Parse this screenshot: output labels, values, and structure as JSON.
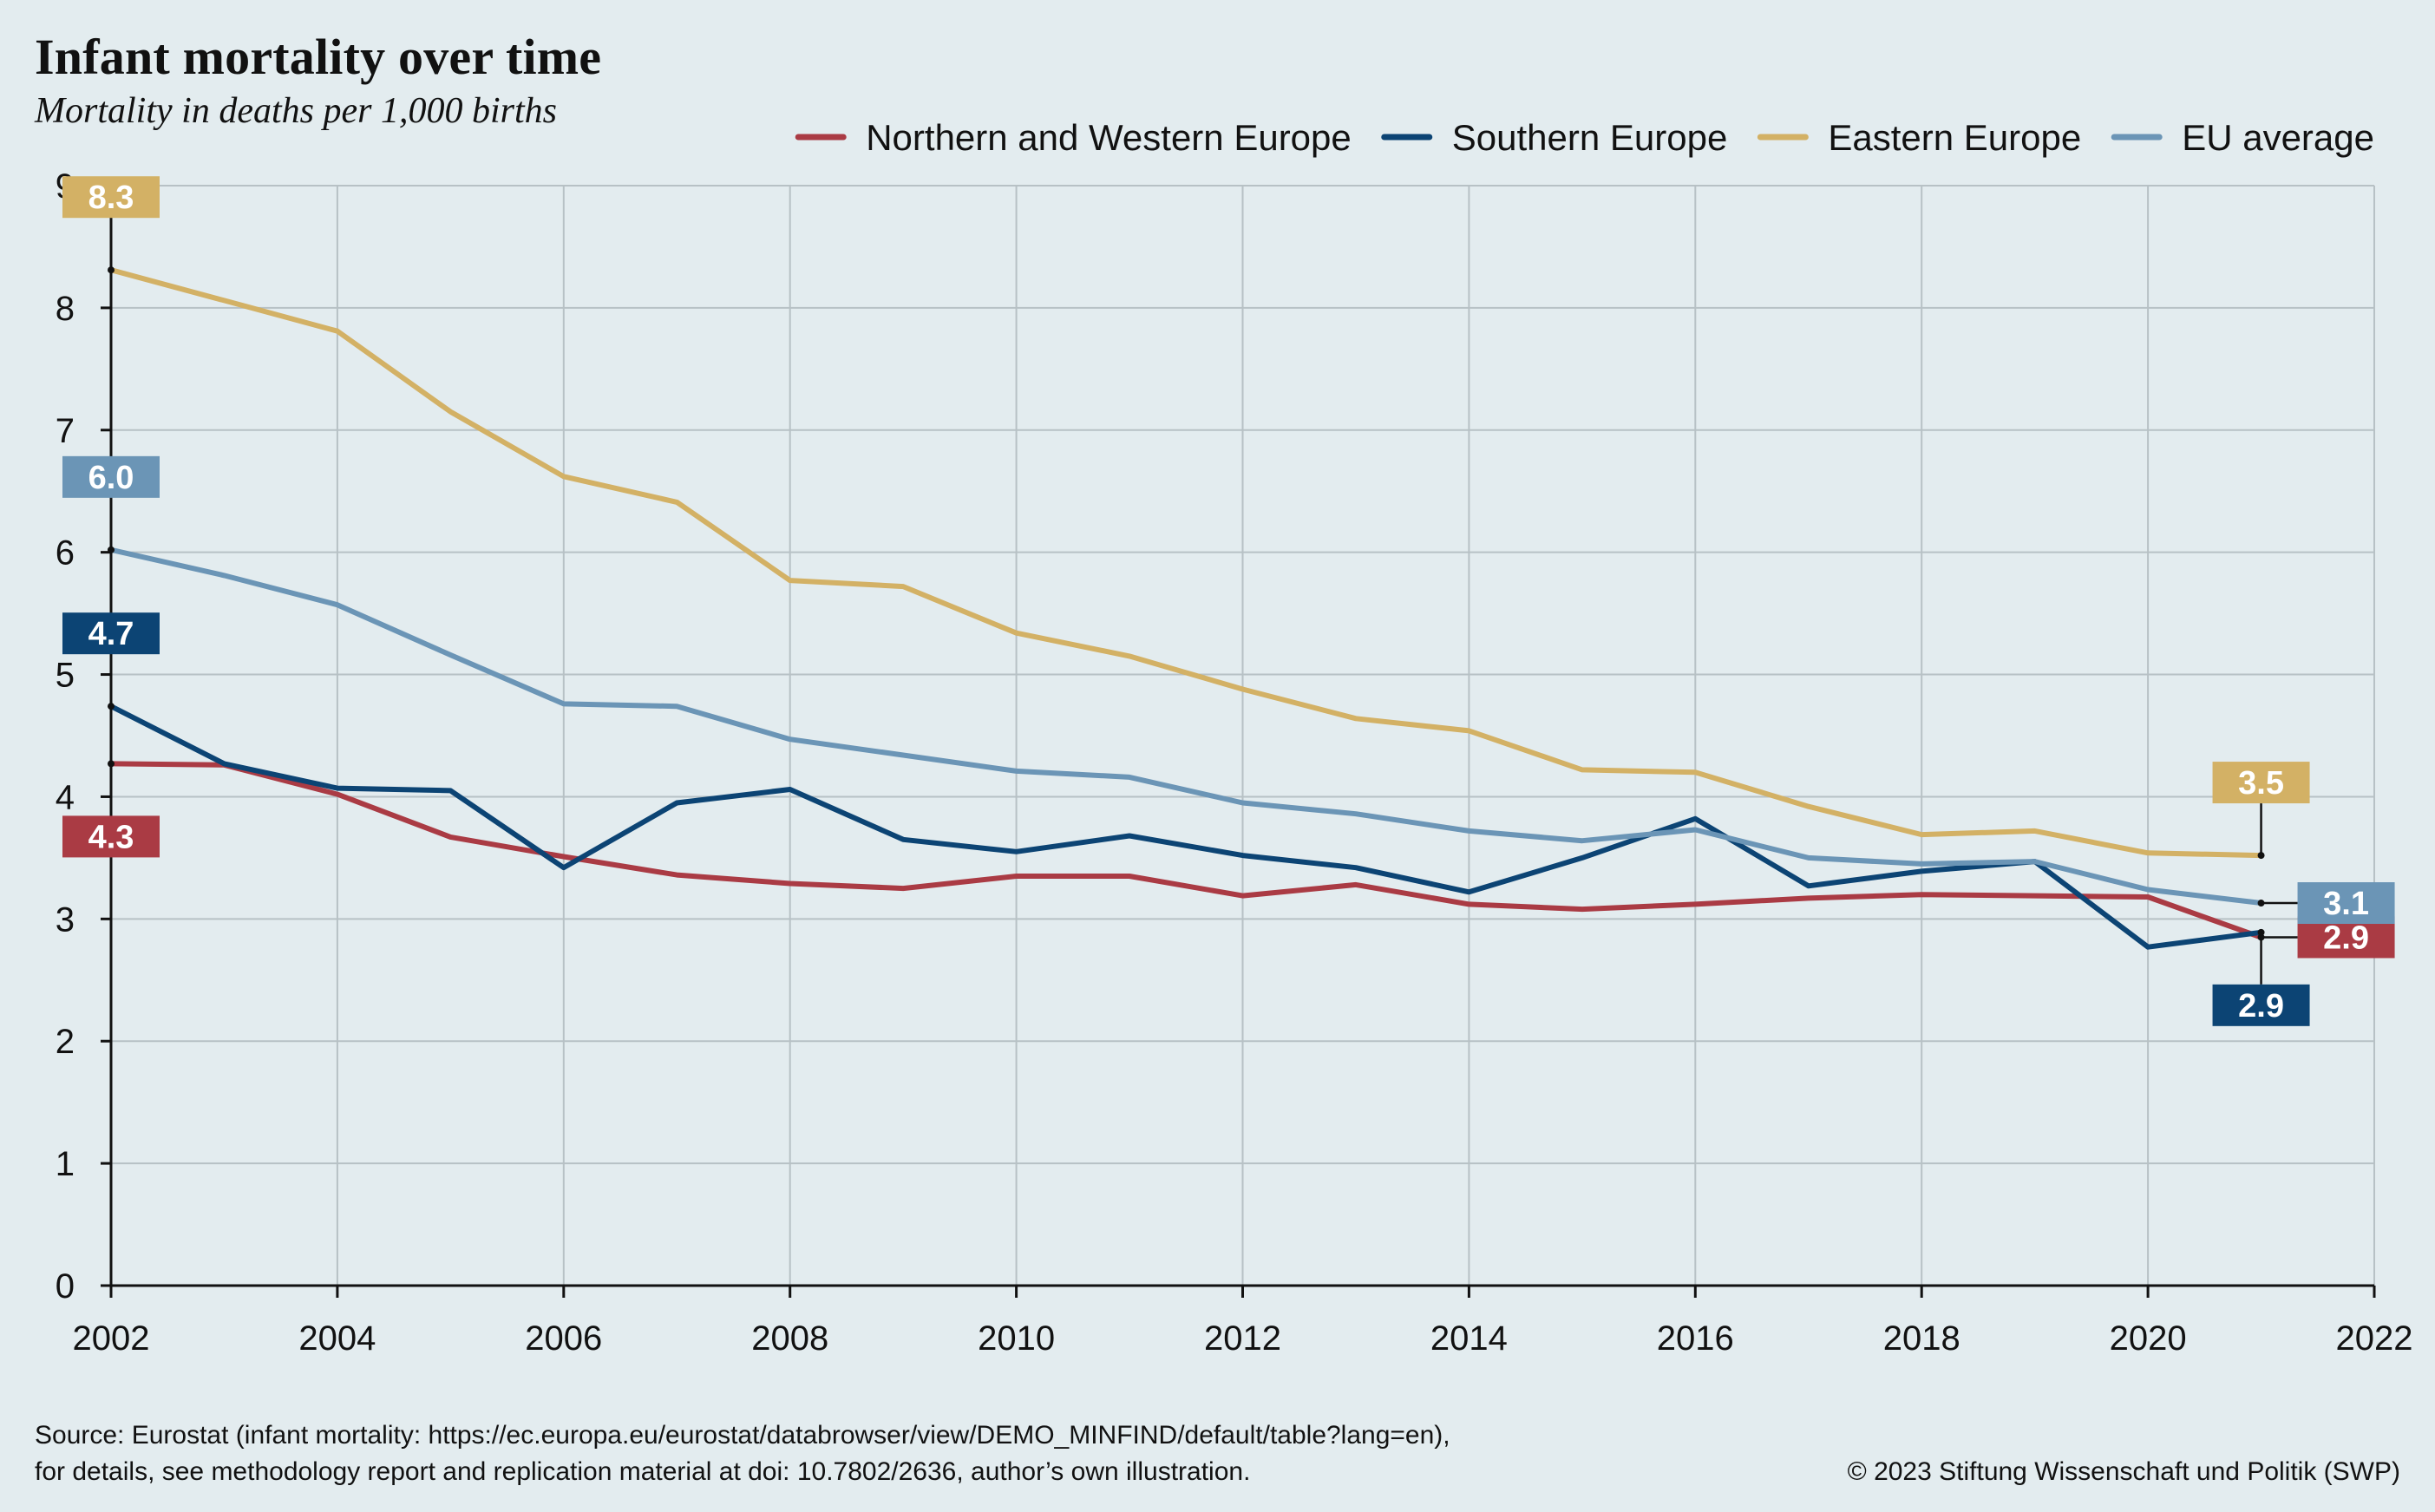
{
  "title": "Infant mortality over time",
  "subtitle": "Mortality in deaths per 1,000 births",
  "source_line1": "Source: Eurostat (infant mortality: https://ec.europa.eu/eurostat/databrowser/view/DEMO_MINFIND/default/table?lang=en),",
  "source_line2": "for details, see methodology report and replication material at doi: 10.7802/2636, author’s own illustration.",
  "copyright": "© 2023 Stiftung Wissenschaft und Politik (SWP)",
  "chart_data": {
    "type": "line",
    "title": "Infant mortality over time",
    "subtitle": "Mortality in deaths per 1,000 births",
    "xlabel": "",
    "ylabel": "",
    "xlim": [
      2002,
      2022
    ],
    "ylim": [
      0,
      9
    ],
    "x_ticks": [
      2002,
      2004,
      2006,
      2008,
      2010,
      2012,
      2014,
      2016,
      2018,
      2020,
      2022
    ],
    "y_ticks": [
      0,
      1,
      2,
      3,
      4,
      5,
      6,
      7,
      8,
      9
    ],
    "grid": true,
    "legend_position": "top-right",
    "x": [
      2002,
      2003,
      2004,
      2005,
      2006,
      2007,
      2008,
      2009,
      2010,
      2011,
      2012,
      2013,
      2014,
      2015,
      2016,
      2017,
      2018,
      2019,
      2020,
      2021
    ],
    "series": [
      {
        "name": "Northern and Western Europe",
        "color": "#aa3b44",
        "values": [
          4.27,
          4.26,
          4.02,
          3.67,
          3.51,
          3.36,
          3.29,
          3.25,
          3.35,
          3.35,
          3.19,
          3.28,
          3.12,
          3.08,
          3.12,
          3.17,
          3.2,
          3.19,
          3.18,
          2.85
        ],
        "first_label": "4.3",
        "first_label_side": "below",
        "last_label": "2.9",
        "last_label_side": "right"
      },
      {
        "name": "Southern Europe",
        "color": "#0c4474",
        "values": [
          4.74,
          4.27,
          4.07,
          4.05,
          3.42,
          3.95,
          4.06,
          3.65,
          3.55,
          3.68,
          3.52,
          3.42,
          3.22,
          3.5,
          3.82,
          3.27,
          3.39,
          3.47,
          2.77,
          2.89
        ],
        "first_label": "4.7",
        "first_label_side": "above",
        "last_label": "2.9",
        "last_label_side": "below"
      },
      {
        "name": "Eastern Europe",
        "color": "#d3b165",
        "values": [
          8.31,
          8.06,
          7.81,
          7.15,
          6.62,
          6.41,
          5.77,
          5.72,
          5.34,
          5.15,
          4.88,
          4.64,
          4.54,
          4.22,
          4.2,
          3.92,
          3.69,
          3.72,
          3.54,
          3.52
        ],
        "first_label": "8.3",
        "first_label_side": "above",
        "last_label": "3.5",
        "last_label_side": "above"
      },
      {
        "name": "EU average",
        "color": "#6b95b6",
        "values": [
          6.02,
          5.81,
          5.57,
          5.16,
          4.76,
          4.74,
          4.47,
          4.34,
          4.21,
          4.16,
          3.95,
          3.86,
          3.72,
          3.64,
          3.73,
          3.5,
          3.45,
          3.47,
          3.24,
          3.13
        ],
        "first_label": "6.0",
        "first_label_side": "above",
        "last_label": "3.1",
        "last_label_side": "right"
      }
    ]
  }
}
